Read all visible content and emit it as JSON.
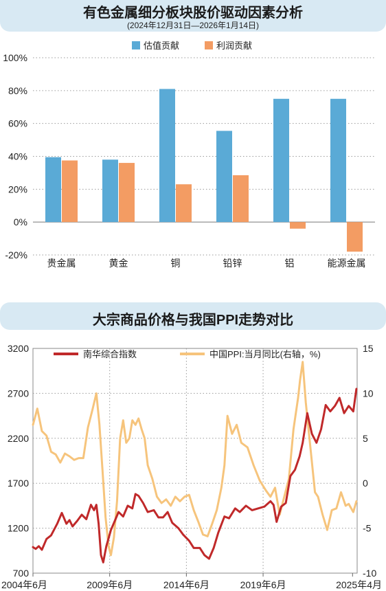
{
  "chart_data": [
    {
      "type": "bar",
      "title": "有色金属细分板块股价驱动因素分析",
      "subtitle": "(2024年12月31日—2026年1月14日)",
      "categories": [
        "贵金属",
        "黄金",
        "铜",
        "铅锌",
        "铝",
        "能源金属"
      ],
      "series": [
        {
          "name": "估值贡献",
          "color": "#5aaad6",
          "values": [
            39.5,
            38,
            81,
            55.5,
            75,
            75
          ]
        },
        {
          "name": "利润贡献",
          "color": "#f39c63",
          "values": [
            37.5,
            36,
            23,
            28.5,
            -4,
            -18
          ]
        }
      ],
      "ylim": [
        -20,
        100
      ],
      "yticks": [
        -20,
        0,
        20,
        40,
        60,
        80,
        100
      ],
      "ytick_labels": [
        "-20%",
        "0%",
        "20%",
        "40%",
        "60%",
        "80%",
        "100%"
      ],
      "grid": true,
      "legend": "top-center"
    },
    {
      "type": "line",
      "title": "大宗商品价格与我国PPI走势对比",
      "x_start": "2004年6月",
      "x_end": "2025年4月",
      "xtick_labels": [
        "2004年6月",
        "2009年6月",
        "2014年6月",
        "2019年6月",
        "2025年4月"
      ],
      "xtick_positions": [
        2004.42,
        2009.42,
        2014.42,
        2019.42,
        2025.25
      ],
      "ylim_left": [
        700,
        3200
      ],
      "yticks_left": [
        700,
        1200,
        1700,
        2200,
        2700,
        3200
      ],
      "ylim_right": [
        -10,
        15
      ],
      "yticks_right": [
        -10,
        -5,
        0,
        5,
        10,
        15
      ],
      "legend": "top",
      "series": [
        {
          "name": "南华综合指数",
          "axis": "left",
          "color": "#c0292a",
          "x": [
            2004.42,
            2004.6,
            2004.8,
            2005.0,
            2005.3,
            2005.6,
            2006.0,
            2006.3,
            2006.6,
            2006.8,
            2007.0,
            2007.3,
            2007.6,
            2007.9,
            2008.2,
            2008.4,
            2008.55,
            2008.7,
            2008.85,
            2009.0,
            2009.2,
            2009.5,
            2009.8,
            2010.0,
            2010.3,
            2010.6,
            2010.9,
            2011.1,
            2011.3,
            2011.6,
            2011.9,
            2012.3,
            2012.6,
            2012.9,
            2013.2,
            2013.5,
            2013.9,
            2014.2,
            2014.6,
            2014.9,
            2015.3,
            2015.6,
            2015.9,
            2016.2,
            2016.5,
            2016.9,
            2017.2,
            2017.6,
            2017.9,
            2018.3,
            2018.7,
            2019.1,
            2019.5,
            2019.9,
            2020.1,
            2020.3,
            2020.6,
            2020.9,
            2021.2,
            2021.5,
            2021.8,
            2022.0,
            2022.3,
            2022.6,
            2022.9,
            2023.2,
            2023.5,
            2023.8,
            2024.1,
            2024.4,
            2024.7,
            2025.0,
            2025.3,
            2025.5
          ],
          "y": [
            990,
            970,
            1000,
            960,
            1080,
            1120,
            1250,
            1370,
            1250,
            1290,
            1220,
            1280,
            1350,
            1300,
            1460,
            1400,
            1460,
            1250,
            900,
            820,
            1000,
            1180,
            1300,
            1380,
            1330,
            1450,
            1420,
            1580,
            1560,
            1480,
            1380,
            1400,
            1320,
            1320,
            1380,
            1260,
            1200,
            1130,
            1060,
            980,
            980,
            900,
            860,
            980,
            1150,
            1330,
            1310,
            1420,
            1380,
            1450,
            1400,
            1420,
            1440,
            1500,
            1460,
            1270,
            1440,
            1480,
            1780,
            1850,
            2000,
            2150,
            2480,
            2250,
            2150,
            2300,
            2570,
            2500,
            2560,
            2650,
            2480,
            2560,
            2500,
            2750
          ]
        },
        {
          "name": "中国PPI:当月同比(右轴，%)",
          "axis": "right",
          "color": "#f6c47c",
          "x": [
            2004.42,
            2004.7,
            2005.0,
            2005.3,
            2005.6,
            2005.9,
            2006.2,
            2006.5,
            2006.8,
            2007.1,
            2007.4,
            2007.7,
            2008.0,
            2008.3,
            2008.55,
            2008.75,
            2008.95,
            2009.15,
            2009.35,
            2009.5,
            2009.7,
            2009.9,
            2010.1,
            2010.3,
            2010.5,
            2010.7,
            2010.9,
            2011.1,
            2011.3,
            2011.5,
            2011.7,
            2011.9,
            2012.2,
            2012.5,
            2012.8,
            2013.1,
            2013.4,
            2013.7,
            2014.0,
            2014.3,
            2014.6,
            2014.9,
            2015.2,
            2015.5,
            2015.8,
            2016.1,
            2016.4,
            2016.7,
            2016.9,
            2017.1,
            2017.4,
            2017.7,
            2018.0,
            2018.4,
            2018.8,
            2019.2,
            2019.6,
            2019.9,
            2020.2,
            2020.5,
            2020.8,
            2021.1,
            2021.4,
            2021.7,
            2021.83,
            2022.0,
            2022.2,
            2022.5,
            2022.8,
            2023.0,
            2023.3,
            2023.6,
            2023.9,
            2024.2,
            2024.5,
            2024.8,
            2025.0,
            2025.3,
            2025.5
          ],
          "y": [
            6.5,
            8.3,
            5.8,
            5.3,
            3.5,
            3.2,
            2.3,
            3.3,
            3.0,
            2.6,
            2.8,
            2.8,
            6.2,
            8.2,
            10.0,
            6.6,
            1.5,
            -3.8,
            -7.0,
            -8.0,
            -6.0,
            -2.0,
            5.0,
            7.0,
            4.5,
            5.0,
            7.0,
            6.5,
            7.2,
            6.0,
            5.0,
            2.0,
            0.5,
            -1.5,
            -2.2,
            -1.8,
            -2.5,
            -1.5,
            -2.0,
            -1.5,
            -1.3,
            -3.0,
            -4.3,
            -5.7,
            -5.9,
            -4.5,
            -3.0,
            -0.5,
            2.0,
            7.5,
            5.5,
            6.5,
            4.5,
            4.0,
            2.0,
            0.3,
            -0.8,
            -1.5,
            -0.5,
            -3.5,
            -1.5,
            0.5,
            6.0,
            9.5,
            11.5,
            13.5,
            9.0,
            4.0,
            -1.0,
            -1.5,
            -3.5,
            -5.2,
            -3.0,
            -2.8,
            -1.0,
            -2.5,
            -2.3,
            -3.2,
            -2.0
          ]
        }
      ]
    }
  ],
  "panel1": {
    "title": "有色金属细分板块股价驱动因素分析",
    "subtitle": "(2024年12月31日—2026年1月14日)"
  },
  "panel2": {
    "title": "大宗商品价格与我国PPI走势对比"
  }
}
